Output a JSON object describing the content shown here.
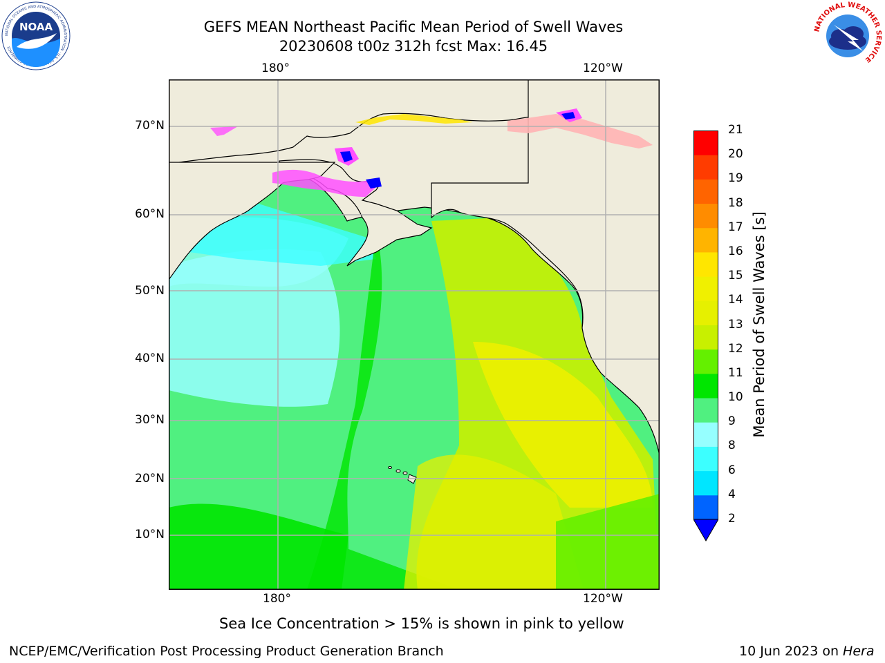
{
  "header": {
    "title_line1": "GEFS MEAN Northeast Pacific Mean Period of Swell Waves",
    "title_line2": "20230608 t00z 312h fcst   Max: 16.45"
  },
  "logos": {
    "noaa_text": "NOAA",
    "noaa_ring_text": "NATIONAL OCEANIC AND ATMOSPHERIC ADMINISTRATION · U.S. DEPARTMENT OF COMMERCE",
    "nws_ring_text": "NATIONAL WEATHER SERVICE"
  },
  "map": {
    "lon_labels_top": [
      "180°",
      "120°W"
    ],
    "lon_labels_bottom": [
      "180°",
      "120°W"
    ],
    "lat_labels": [
      "70°N",
      "60°N",
      "50°N",
      "40°N",
      "30°N",
      "20°N",
      "10°N"
    ],
    "grid": true,
    "land_color": "#efecdc",
    "ice_note": "Sea Ice Concentration > 15% is shown in pink to yellow"
  },
  "colorbar": {
    "label": "Mean Period of Swell Waves [s]",
    "ticks": [
      "21",
      "20",
      "19",
      "18",
      "17",
      "16",
      "15",
      "14",
      "13",
      "12",
      "11",
      "10",
      "9",
      "8",
      "6",
      "4",
      "2"
    ],
    "colors_bottom_to_top": [
      "#0064ff",
      "#00e6ff",
      "#3cffff",
      "#96ffff",
      "#50f080",
      "#00e600",
      "#64f000",
      "#c8f000",
      "#e6f000",
      "#f0f000",
      "#ffe600",
      "#ffb400",
      "#ff8c00",
      "#ff6400",
      "#ff3c00",
      "#ff0000"
    ],
    "under_color": "#0000ff"
  },
  "footer": {
    "left": "NCEP/EMC/Verification Post Processing Product Generation Branch",
    "right_date": "10 Jun 2023 on ",
    "right_host": "Hera"
  }
}
